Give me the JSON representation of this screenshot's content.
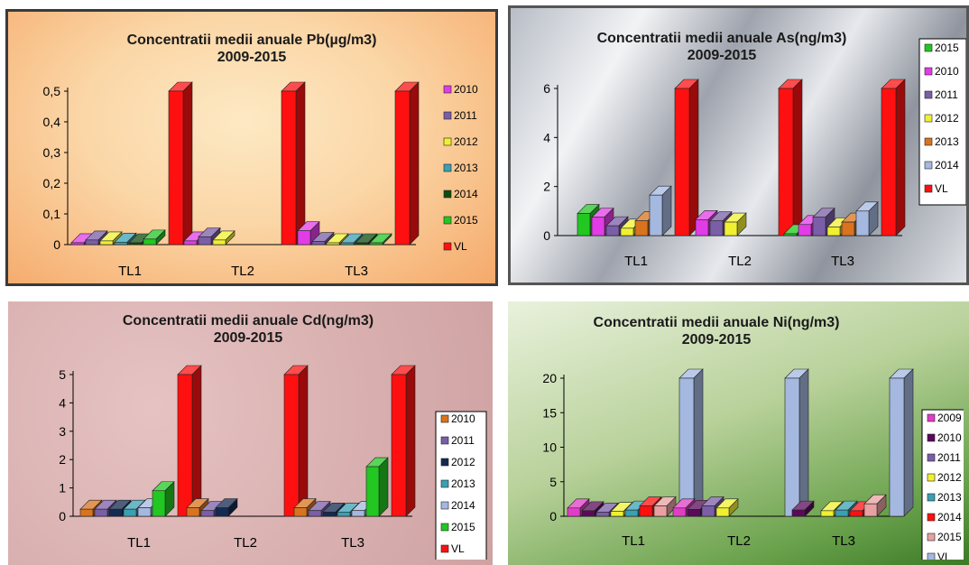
{
  "chart_data": [
    {
      "type": "bar",
      "title": "Concentratii medii anuale Pb(µg/m3)",
      "subtitle": "2009-2015",
      "categories": [
        "TL1",
        "TL2",
        "TL3"
      ],
      "ylim": [
        0,
        0.5
      ],
      "yticks": [
        "0",
        "0,1",
        "0,2",
        "0,3",
        "0,4",
        "0,5"
      ],
      "legend_position": "right",
      "series": [
        {
          "name": "2010",
          "color": "#e23ce6",
          "values": [
            0.006,
            0.012,
            0.045
          ]
        },
        {
          "name": "2011",
          "color": "#7a5ea8",
          "values": [
            0.015,
            0.025,
            0.01
          ]
        },
        {
          "name": "2012",
          "color": "#f0f032",
          "values": [
            0.012,
            0.015,
            0.005
          ]
        },
        {
          "name": "2013",
          "color": "#3aa0b4",
          "values": [
            0.008,
            null,
            0.004
          ]
        },
        {
          "name": "2014",
          "color": "#0d4d0d",
          "values": [
            0.004,
            null,
            0.003
          ]
        },
        {
          "name": "2015",
          "color": "#22c722",
          "values": [
            0.018,
            null,
            0.004
          ]
        },
        {
          "name": "VL",
          "color": "#ff1010",
          "values": [
            0.5,
            0.5,
            0.5
          ]
        }
      ]
    },
    {
      "type": "bar",
      "title": "Concentratii medii anuale As(ng/m3)",
      "subtitle": "2009-2015",
      "categories": [
        "TL1",
        "TL2",
        "TL3"
      ],
      "ylim": [
        0,
        6
      ],
      "yticks": [
        "0",
        "2",
        "4",
        "6"
      ],
      "legend_position": "right",
      "series": [
        {
          "name": "2015",
          "color": "#22c722",
          "values": [
            0.9,
            null,
            0.05
          ]
        },
        {
          "name": "2010",
          "color": "#e23ce6",
          "values": [
            0.75,
            0.65,
            0.45
          ]
        },
        {
          "name": "2011",
          "color": "#7a5ea8",
          "values": [
            0.4,
            0.6,
            0.75
          ]
        },
        {
          "name": "2012",
          "color": "#f0f032",
          "values": [
            0.3,
            0.55,
            0.35
          ]
        },
        {
          "name": "2013",
          "color": "#d8731e",
          "values": [
            0.6,
            null,
            0.55
          ]
        },
        {
          "name": "2014",
          "color": "#a4b8e0",
          "values": [
            1.65,
            null,
            1.0
          ]
        },
        {
          "name": "VL",
          "color": "#ff1010",
          "values": [
            6,
            6,
            6
          ]
        }
      ]
    },
    {
      "type": "bar",
      "title": "Concentratii medii anuale Cd(ng/m3)",
      "subtitle": "2009-2015",
      "categories": [
        "TL1",
        "TL2",
        "TL3"
      ],
      "ylim": [
        0,
        5
      ],
      "yticks": [
        "0",
        "1",
        "2",
        "3",
        "4",
        "5"
      ],
      "legend_position": "right",
      "series": [
        {
          "name": "2010",
          "color": "#d8731e",
          "values": [
            0.25,
            0.3,
            0.3
          ]
        },
        {
          "name": "2011",
          "color": "#7a5ea8",
          "values": [
            0.25,
            0.2,
            0.2
          ]
        },
        {
          "name": "2012",
          "color": "#132a52",
          "values": [
            0.25,
            0.3,
            0.15
          ]
        },
        {
          "name": "2013",
          "color": "#3aa0b4",
          "values": [
            0.25,
            null,
            0.15
          ]
        },
        {
          "name": "2014",
          "color": "#a4b8e0",
          "values": [
            0.3,
            null,
            0.2
          ]
        },
        {
          "name": "2015",
          "color": "#22c722",
          "values": [
            0.9,
            null,
            1.75
          ]
        },
        {
          "name": "VL",
          "color": "#ff1010",
          "values": [
            5,
            5,
            5
          ]
        }
      ]
    },
    {
      "type": "bar",
      "title": "Concentratii medii anuale Ni(ng/m3)",
      "subtitle": "2009-2015",
      "categories": [
        "TL1",
        "TL2",
        "TL3"
      ],
      "ylim": [
        0,
        20
      ],
      "yticks": [
        "0",
        "5",
        "10",
        "15",
        "20"
      ],
      "legend_position": "right",
      "series": [
        {
          "name": "2009",
          "color": "#e23cc8",
          "values": [
            1.2,
            1.2,
            null
          ]
        },
        {
          "name": "2010",
          "color": "#5a0a5a",
          "values": [
            0.8,
            1.0,
            0.9
          ]
        },
        {
          "name": "2011",
          "color": "#7a5ea8",
          "values": [
            0.6,
            1.5,
            null
          ]
        },
        {
          "name": "2012",
          "color": "#f0f032",
          "values": [
            0.7,
            1.2,
            0.8
          ]
        },
        {
          "name": "2013",
          "color": "#3aa0b4",
          "values": [
            0.9,
            null,
            0.9
          ]
        },
        {
          "name": "2014",
          "color": "#ff1010",
          "values": [
            1.5,
            null,
            0.8
          ]
        },
        {
          "name": "2015",
          "color": "#e8a0a0",
          "values": [
            1.5,
            null,
            1.8
          ]
        },
        {
          "name": "VL",
          "color": "#a4b8e0",
          "values": [
            20,
            20,
            20
          ]
        }
      ]
    }
  ]
}
